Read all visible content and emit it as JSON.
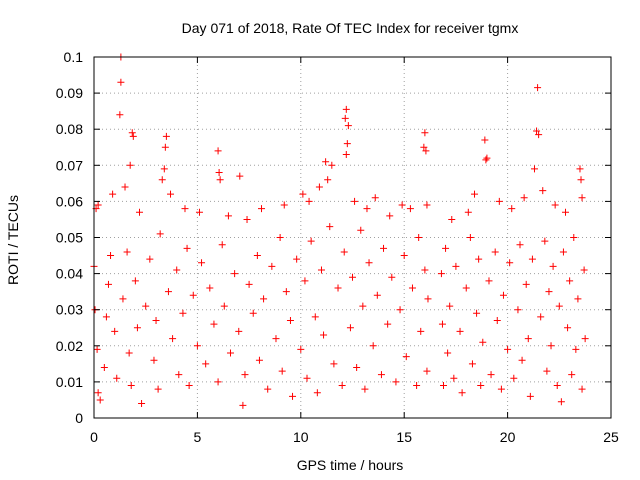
{
  "chart_data": {
    "type": "scatter",
    "title": "Day 071 of 2018, Rate Of TEC Index for receiver tgmx",
    "xlabel": "GPS time / hours",
    "ylabel": "ROTI / TECUs",
    "xlim": [
      0,
      25
    ],
    "ylim": [
      0,
      0.1
    ],
    "x_ticks": [
      0,
      5,
      10,
      15,
      20,
      25
    ],
    "x_tick_labels": [
      "0",
      "5",
      "10",
      "15",
      "20",
      "25"
    ],
    "y_ticks": [
      0,
      0.01,
      0.02,
      0.03,
      0.04,
      0.05,
      0.06,
      0.07,
      0.08,
      0.09,
      0.1
    ],
    "y_tick_labels": [
      "0",
      "0.01",
      "0.02",
      "0.03",
      "0.04",
      "0.05",
      "0.06",
      "0.07",
      "0.08",
      "0.09",
      "0.1"
    ],
    "grid": true,
    "marker": "+",
    "colors": {
      "series": "#ff0000",
      "axes": "#000000",
      "grid": "#a0a0a0",
      "background": "#ffffff"
    },
    "series": [
      {
        "name": "ROTI",
        "points": [
          [
            1.3,
            0.1
          ],
          [
            1.3,
            0.093
          ],
          [
            1.25,
            0.084
          ],
          [
            1.85,
            0.079
          ],
          [
            1.9,
            0.078
          ],
          [
            1.75,
            0.07
          ],
          [
            3.5,
            0.078
          ],
          [
            3.45,
            0.075
          ],
          [
            3.4,
            0.069
          ],
          [
            6.0,
            0.074
          ],
          [
            6.05,
            0.068
          ],
          [
            6.1,
            0.066
          ],
          [
            7.05,
            0.067
          ],
          [
            11.2,
            0.071
          ],
          [
            11.5,
            0.07
          ],
          [
            12.2,
            0.0855
          ],
          [
            12.15,
            0.083
          ],
          [
            12.3,
            0.081
          ],
          [
            12.25,
            0.076
          ],
          [
            12.2,
            0.073
          ],
          [
            16.0,
            0.079
          ],
          [
            15.95,
            0.075
          ],
          [
            16.05,
            0.074
          ],
          [
            18.9,
            0.077
          ],
          [
            19.0,
            0.072
          ],
          [
            18.95,
            0.0715
          ],
          [
            21.45,
            0.0915
          ],
          [
            21.4,
            0.0795
          ],
          [
            21.5,
            0.0785
          ],
          [
            21.3,
            0.069
          ],
          [
            23.5,
            0.069
          ],
          [
            23.55,
            0.066
          ],
          [
            0.1,
            0.058
          ],
          [
            0.2,
            0.059
          ],
          [
            0.9,
            0.062
          ],
          [
            1.5,
            0.064
          ],
          [
            2.2,
            0.057
          ],
          [
            3.3,
            0.066
          ],
          [
            3.7,
            0.062
          ],
          [
            4.4,
            0.058
          ],
          [
            5.1,
            0.057
          ],
          [
            6.5,
            0.056
          ],
          [
            7.4,
            0.055
          ],
          [
            8.1,
            0.058
          ],
          [
            9.2,
            0.059
          ],
          [
            10.1,
            0.062
          ],
          [
            10.4,
            0.06
          ],
          [
            10.9,
            0.064
          ],
          [
            11.3,
            0.066
          ],
          [
            12.6,
            0.06
          ],
          [
            13.2,
            0.058
          ],
          [
            13.6,
            0.061
          ],
          [
            14.3,
            0.056
          ],
          [
            14.9,
            0.059
          ],
          [
            15.3,
            0.058
          ],
          [
            16.1,
            0.059
          ],
          [
            17.3,
            0.055
          ],
          [
            18.1,
            0.057
          ],
          [
            18.4,
            0.062
          ],
          [
            19.6,
            0.06
          ],
          [
            20.2,
            0.058
          ],
          [
            20.8,
            0.061
          ],
          [
            21.7,
            0.063
          ],
          [
            22.3,
            0.059
          ],
          [
            22.8,
            0.057
          ],
          [
            23.6,
            0.061
          ],
          [
            0.0,
            0.042
          ],
          [
            0.05,
            0.03
          ],
          [
            0.15,
            0.019
          ],
          [
            0.2,
            0.007
          ],
          [
            0.3,
            0.005
          ],
          [
            0.5,
            0.014
          ],
          [
            0.6,
            0.028
          ],
          [
            0.7,
            0.037
          ],
          [
            0.8,
            0.045
          ],
          [
            1.0,
            0.024
          ],
          [
            1.1,
            0.011
          ],
          [
            1.4,
            0.033
          ],
          [
            1.6,
            0.046
          ],
          [
            1.7,
            0.018
          ],
          [
            1.8,
            0.009
          ],
          [
            2.0,
            0.038
          ],
          [
            2.1,
            0.025
          ],
          [
            2.3,
            0.004
          ],
          [
            2.5,
            0.031
          ],
          [
            2.7,
            0.044
          ],
          [
            2.9,
            0.016
          ],
          [
            3.0,
            0.027
          ],
          [
            3.1,
            0.008
          ],
          [
            3.2,
            0.051
          ],
          [
            3.6,
            0.035
          ],
          [
            3.8,
            0.022
          ],
          [
            4.0,
            0.041
          ],
          [
            4.1,
            0.012
          ],
          [
            4.3,
            0.029
          ],
          [
            4.5,
            0.047
          ],
          [
            4.6,
            0.009
          ],
          [
            4.8,
            0.034
          ],
          [
            5.0,
            0.02
          ],
          [
            5.2,
            0.043
          ],
          [
            5.4,
            0.015
          ],
          [
            5.6,
            0.036
          ],
          [
            5.8,
            0.026
          ],
          [
            6.0,
            0.01
          ],
          [
            6.2,
            0.048
          ],
          [
            6.3,
            0.031
          ],
          [
            6.6,
            0.018
          ],
          [
            6.8,
            0.04
          ],
          [
            7.0,
            0.024
          ],
          [
            7.2,
            0.0035
          ],
          [
            7.3,
            0.012
          ],
          [
            7.5,
            0.037
          ],
          [
            7.7,
            0.029
          ],
          [
            7.9,
            0.045
          ],
          [
            8.0,
            0.016
          ],
          [
            8.2,
            0.033
          ],
          [
            8.4,
            0.008
          ],
          [
            8.6,
            0.042
          ],
          [
            8.8,
            0.022
          ],
          [
            9.0,
            0.05
          ],
          [
            9.1,
            0.013
          ],
          [
            9.3,
            0.035
          ],
          [
            9.5,
            0.027
          ],
          [
            9.6,
            0.006
          ],
          [
            9.8,
            0.044
          ],
          [
            10.0,
            0.019
          ],
          [
            10.2,
            0.038
          ],
          [
            10.3,
            0.011
          ],
          [
            10.5,
            0.049
          ],
          [
            10.7,
            0.028
          ],
          [
            10.8,
            0.007
          ],
          [
            11.0,
            0.041
          ],
          [
            11.1,
            0.023
          ],
          [
            11.4,
            0.053
          ],
          [
            11.6,
            0.015
          ],
          [
            11.8,
            0.036
          ],
          [
            12.0,
            0.009
          ],
          [
            12.1,
            0.046
          ],
          [
            12.4,
            0.025
          ],
          [
            12.5,
            0.039
          ],
          [
            12.7,
            0.014
          ],
          [
            12.9,
            0.052
          ],
          [
            13.0,
            0.031
          ],
          [
            13.1,
            0.008
          ],
          [
            13.3,
            0.043
          ],
          [
            13.5,
            0.02
          ],
          [
            13.7,
            0.034
          ],
          [
            13.9,
            0.012
          ],
          [
            14.0,
            0.047
          ],
          [
            14.2,
            0.026
          ],
          [
            14.4,
            0.039
          ],
          [
            14.6,
            0.01
          ],
          [
            14.8,
            0.03
          ],
          [
            15.0,
            0.045
          ],
          [
            15.1,
            0.017
          ],
          [
            15.4,
            0.036
          ],
          [
            15.6,
            0.009
          ],
          [
            15.7,
            0.05
          ],
          [
            15.8,
            0.024
          ],
          [
            16.0,
            0.041
          ],
          [
            16.1,
            0.013
          ],
          [
            16.15,
            0.033
          ],
          [
            16.8,
            0.04
          ],
          [
            16.85,
            0.026
          ],
          [
            16.9,
            0.009
          ],
          [
            17.0,
            0.047
          ],
          [
            17.1,
            0.018
          ],
          [
            17.2,
            0.031
          ],
          [
            17.4,
            0.011
          ],
          [
            17.5,
            0.042
          ],
          [
            17.7,
            0.024
          ],
          [
            17.8,
            0.007
          ],
          [
            18.0,
            0.036
          ],
          [
            18.2,
            0.05
          ],
          [
            18.3,
            0.015
          ],
          [
            18.5,
            0.029
          ],
          [
            18.6,
            0.044
          ],
          [
            18.7,
            0.009
          ],
          [
            18.8,
            0.021
          ],
          [
            19.1,
            0.038
          ],
          [
            19.2,
            0.012
          ],
          [
            19.4,
            0.046
          ],
          [
            19.5,
            0.027
          ],
          [
            19.7,
            0.008
          ],
          [
            19.8,
            0.034
          ],
          [
            20.0,
            0.019
          ],
          [
            20.1,
            0.043
          ],
          [
            20.3,
            0.011
          ],
          [
            20.5,
            0.03
          ],
          [
            20.6,
            0.048
          ],
          [
            20.7,
            0.016
          ],
          [
            20.9,
            0.037
          ],
          [
            21.0,
            0.022
          ],
          [
            21.1,
            0.006
          ],
          [
            21.2,
            0.044
          ],
          [
            21.6,
            0.028
          ],
          [
            21.8,
            0.049
          ],
          [
            21.9,
            0.013
          ],
          [
            22.0,
            0.035
          ],
          [
            22.1,
            0.02
          ],
          [
            22.2,
            0.042
          ],
          [
            22.4,
            0.009
          ],
          [
            22.5,
            0.031
          ],
          [
            22.6,
            0.0045
          ],
          [
            22.7,
            0.046
          ],
          [
            22.9,
            0.025
          ],
          [
            23.0,
            0.038
          ],
          [
            23.1,
            0.012
          ],
          [
            23.2,
            0.05
          ],
          [
            23.3,
            0.019
          ],
          [
            23.4,
            0.033
          ],
          [
            23.6,
            0.008
          ],
          [
            23.7,
            0.041
          ],
          [
            23.75,
            0.022
          ]
        ]
      }
    ]
  }
}
